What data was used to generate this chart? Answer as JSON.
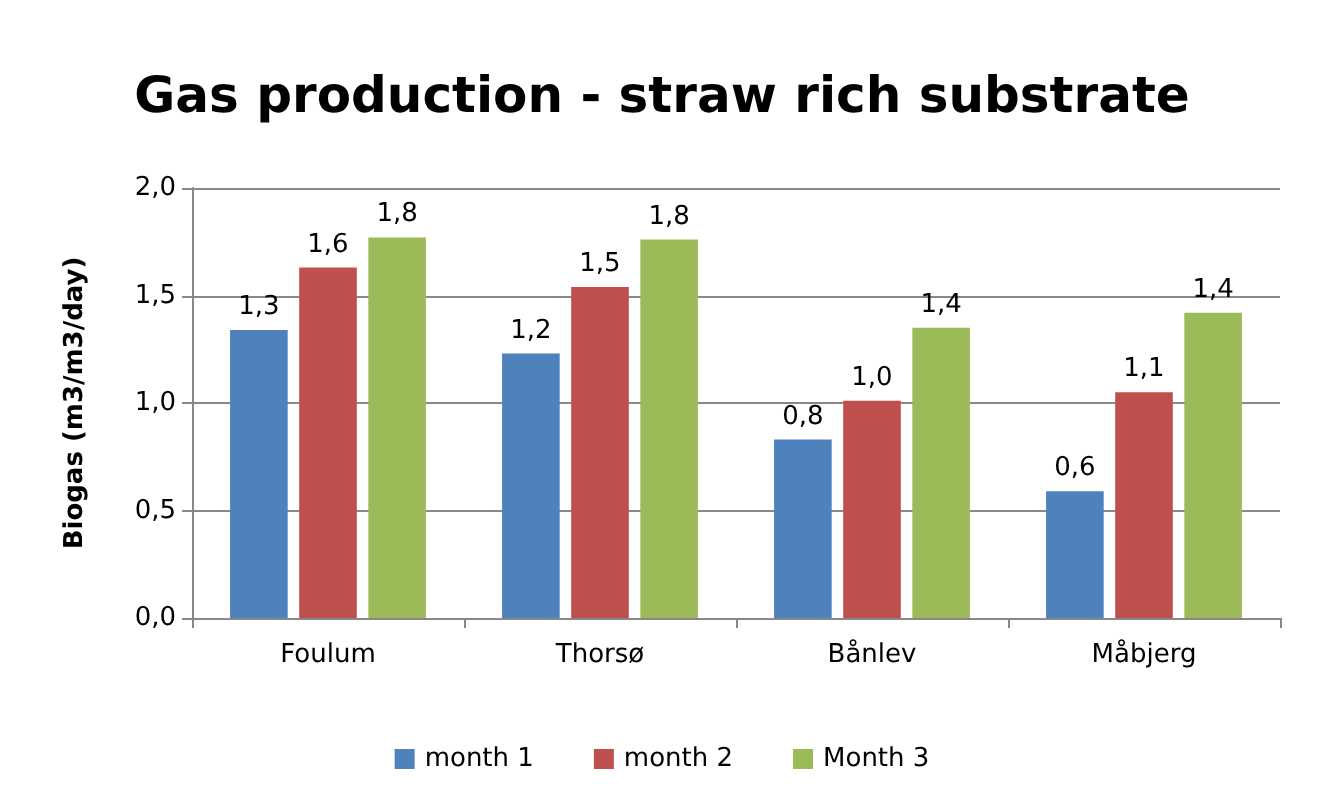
{
  "chart_data": {
    "type": "bar",
    "title": "Gas production - straw rich substrate",
    "ylabel": "Biogas (m3/m3/day)",
    "categories": [
      "Foulum",
      "Thorsø",
      "Bånlev",
      "Måbjerg"
    ],
    "series": [
      {
        "name": "month 1",
        "color": "#4f81bd",
        "values": [
          1.34,
          1.23,
          0.83,
          0.59
        ],
        "value_labels": [
          "1,3",
          "1,2",
          "0,8",
          "0,6"
        ]
      },
      {
        "name": "month 2",
        "color": "#c0504d",
        "values": [
          1.63,
          1.54,
          1.01,
          1.05
        ],
        "value_labels": [
          "1,6",
          "1,5",
          "1,0",
          "1,1"
        ]
      },
      {
        "name": "Month 3",
        "color": "#9bbb59",
        "values": [
          1.77,
          1.76,
          1.35,
          1.42
        ],
        "value_labels": [
          "1,8",
          "1,8",
          "1,4",
          "1,4"
        ]
      }
    ],
    "ylim": [
      0,
      2
    ],
    "yticks": [
      {
        "value": 0,
        "label": "0,0"
      },
      {
        "value": 0.5,
        "label": "0,5"
      },
      {
        "value": 1,
        "label": "1,0"
      },
      {
        "value": 1.5,
        "label": "1,5"
      },
      {
        "value": 2,
        "label": "2,0"
      }
    ],
    "grid": "y",
    "legend": "bottom"
  }
}
